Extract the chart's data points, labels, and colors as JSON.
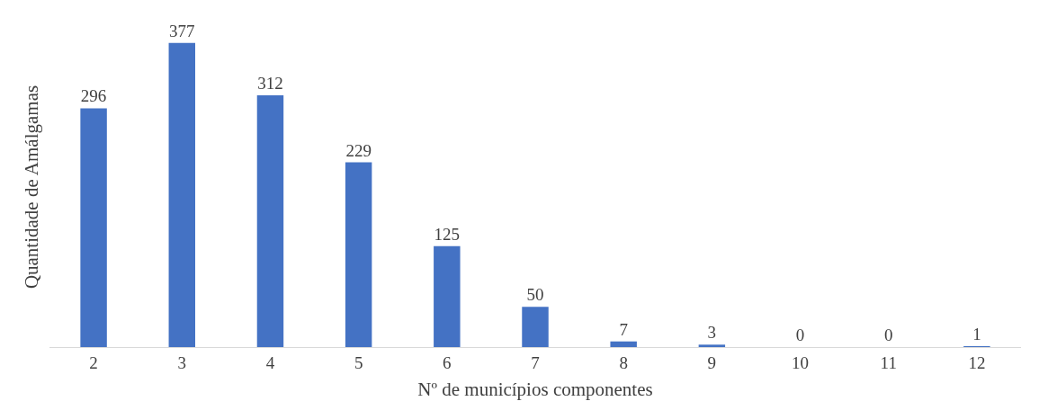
{
  "chart_data": {
    "type": "bar",
    "xlabel": "Nº de municípios componentes",
    "ylabel": "Quantidade de Amálgamas",
    "categories": [
      "2",
      "3",
      "4",
      "5",
      "6",
      "7",
      "8",
      "9",
      "10",
      "11",
      "12"
    ],
    "values": [
      296,
      377,
      312,
      229,
      125,
      50,
      7,
      3,
      0,
      0,
      1
    ],
    "color": "#4472c4",
    "data_labels": true,
    "legend": false
  }
}
